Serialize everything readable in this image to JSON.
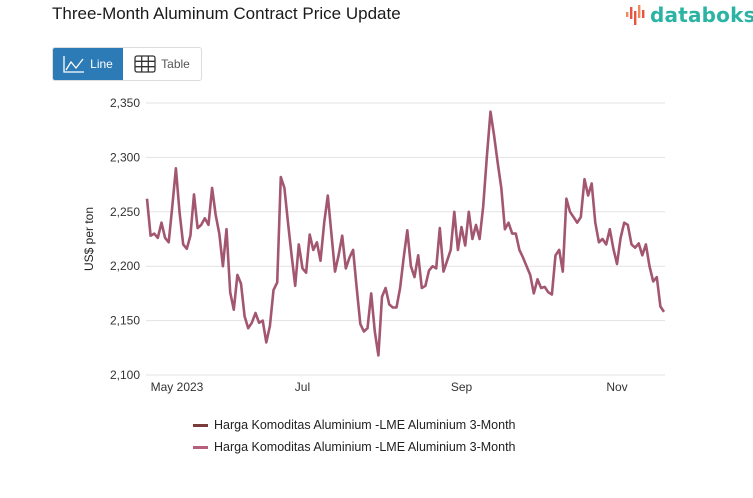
{
  "title": "Three-Month Aluminum Contract Price Update",
  "logo": {
    "text": "databoks",
    "icon": "databoks-bars-icon"
  },
  "view_toggle": {
    "options": [
      {
        "label": "Line",
        "icon": "line-chart-icon",
        "active": true
      },
      {
        "label": "Table",
        "icon": "table-grid-icon",
        "active": false
      }
    ]
  },
  "colors": {
    "accent": "#2c7bb6",
    "series_primary": "#a3566f",
    "series_legend_1": "#7a3b3b",
    "series_legend_2": "#b4607c",
    "grid": "#e3e3e3",
    "logo": "#2bb3a3"
  },
  "legend": [
    {
      "label": "Harga Komoditas Aluminium -LME Aluminium 3-Month",
      "color": "#7a3b3b"
    },
    {
      "label": "Harga Komoditas Aluminium -LME Aluminium 3-Month",
      "color": "#b4607c"
    }
  ],
  "chart_data": {
    "type": "line",
    "title": "Three-Month Aluminum Contract Price Update",
    "xlabel": "",
    "ylabel": "US$ per ton",
    "ylim": [
      2100,
      2350
    ],
    "yticks": [
      2100,
      2150,
      2200,
      2250,
      2300,
      2350
    ],
    "ytick_labels": [
      "2,100",
      "2,150",
      "2,200",
      "2,250",
      "2,300",
      "2,350"
    ],
    "xticks": [
      {
        "label": "May 2023",
        "index": 0
      },
      {
        "label": "Jul",
        "index": 43
      },
      {
        "label": "Sep",
        "index": 87
      },
      {
        "label": "Nov",
        "index": 130
      }
    ],
    "grid": true,
    "legend_position": "bottom",
    "series": [
      {
        "name": "Harga Komoditas Aluminium -LME Aluminium 3-Month",
        "values": [
          2262,
          2228,
          2230,
          2226,
          2240,
          2226,
          2222,
          2255,
          2290,
          2250,
          2220,
          2216,
          2228,
          2266,
          2235,
          2238,
          2244,
          2238,
          2272,
          2247,
          2230,
          2200,
          2234,
          2176,
          2160,
          2192,
          2184,
          2154,
          2143,
          2148,
          2157,
          2148,
          2150,
          2130,
          2145,
          2178,
          2185,
          2282,
          2272,
          2240,
          2210,
          2182,
          2220,
          2198,
          2194,
          2229,
          2215,
          2222,
          2205,
          2240,
          2265,
          2230,
          2195,
          2210,
          2228,
          2198,
          2208,
          2215,
          2180,
          2147,
          2140,
          2143,
          2175,
          2140,
          2118,
          2172,
          2180,
          2165,
          2162,
          2162,
          2180,
          2208,
          2233,
          2200,
          2190,
          2210,
          2180,
          2182,
          2196,
          2200,
          2198,
          2235,
          2195,
          2205,
          2215,
          2250,
          2215,
          2236,
          2219,
          2250,
          2225,
          2238,
          2225,
          2255,
          2300,
          2342,
          2320,
          2295,
          2272,
          2234,
          2240,
          2230,
          2230,
          2215,
          2208,
          2200,
          2192,
          2175,
          2188,
          2180,
          2181,
          2176,
          2174,
          2210,
          2215,
          2195,
          2262,
          2250,
          2245,
          2240,
          2245,
          2280,
          2265,
          2276,
          2240,
          2222,
          2225,
          2220,
          2234,
          2216,
          2202,
          2226,
          2240,
          2238,
          2220,
          2217,
          2221,
          2210,
          2220,
          2200,
          2186,
          2190,
          2163,
          2158
        ]
      }
    ]
  }
}
